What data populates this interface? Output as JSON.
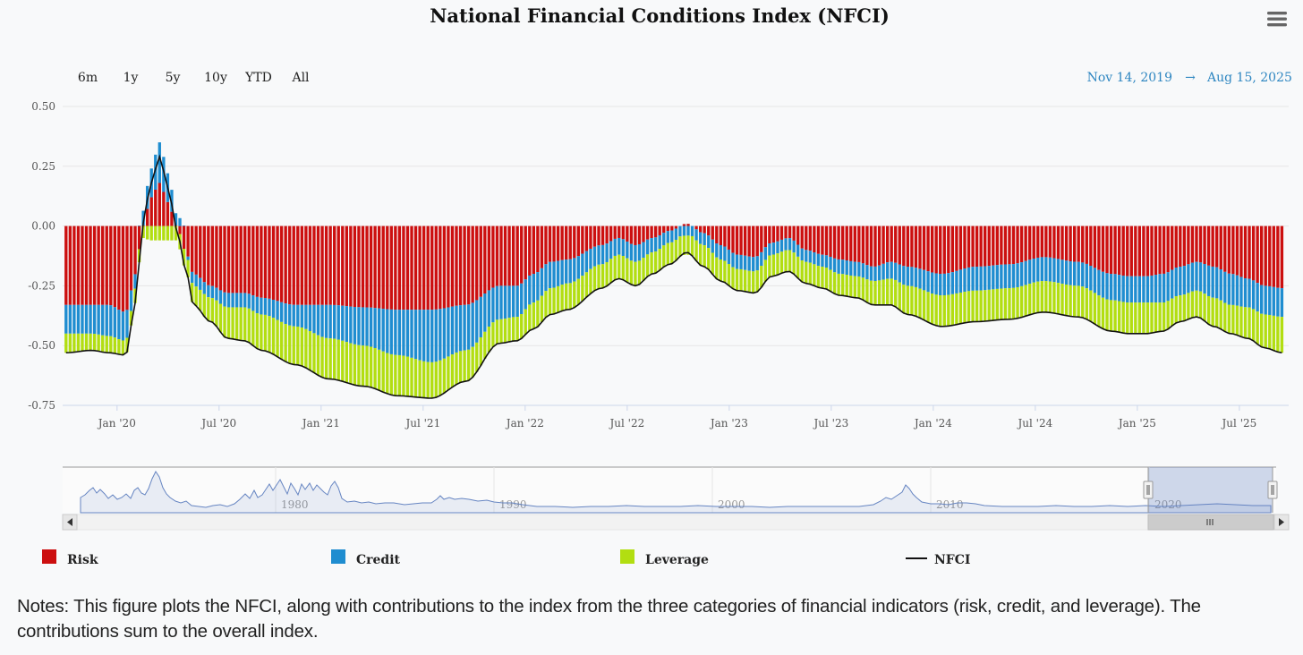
{
  "chart_data": {
    "type": "bar",
    "stacked": true,
    "title": "National Financial Conditions Index (NFCI)",
    "range_buttons": [
      "6m",
      "1y",
      "5y",
      "10y",
      "YTD",
      "All"
    ],
    "date_range": {
      "from": "Nov 14, 2019",
      "arrow": "→",
      "to": "Aug 15, 2025"
    },
    "ylim": [
      -0.75,
      0.5
    ],
    "y_ticks": [
      "0.50",
      "0.25",
      "0.00",
      "-0.25",
      "-0.50",
      "-0.75"
    ],
    "x_tick_labels": [
      "Jan '20",
      "Jul '20",
      "Jan '21",
      "Jul '21",
      "Jan '22",
      "Jul '22",
      "Jan '23",
      "Jul '23",
      "Jan '24",
      "Jul '24",
      "Jan '25",
      "Jul '25"
    ],
    "x_tick_months": [
      1.5,
      7.5,
      13.5,
      19.5,
      25.5,
      31.5,
      37.5,
      43.5,
      49.5,
      55.5,
      61.5,
      67.5
    ],
    "month_domain": [
      -1.7,
      70.4
    ],
    "navigator_labels": [
      "1980",
      "1990",
      "2000",
      "2010",
      "2020"
    ],
    "colors": {
      "risk": "#cc0f0f",
      "credit": "#1f8dd0",
      "leverage": "#b2de11",
      "nfci": "#111111"
    },
    "series_keypoints": {
      "months": [
        -1.5,
        0,
        1,
        2,
        2.6,
        3,
        3.5,
        4,
        4.5,
        5,
        5.5,
        6,
        7,
        8,
        9,
        10,
        12,
        14,
        16,
        18,
        20,
        22,
        24,
        25,
        26,
        27,
        28,
        30,
        31,
        32,
        33,
        34,
        35,
        36,
        37,
        38,
        39,
        40,
        41,
        42,
        43,
        44,
        45,
        46,
        47,
        48,
        50,
        52,
        54,
        56,
        58,
        60,
        61,
        62,
        63,
        64,
        65,
        66,
        67,
        68,
        69,
        70
      ],
      "risk": [
        -0.33,
        -0.33,
        -0.33,
        -0.36,
        -0.2,
        0.0,
        0.12,
        0.18,
        0.1,
        0.0,
        -0.1,
        -0.2,
        -0.25,
        -0.28,
        -0.28,
        -0.3,
        -0.33,
        -0.33,
        -0.34,
        -0.35,
        -0.35,
        -0.33,
        -0.25,
        -0.25,
        -0.2,
        -0.15,
        -0.14,
        -0.08,
        -0.05,
        -0.08,
        -0.05,
        -0.02,
        0.01,
        -0.03,
        -0.08,
        -0.12,
        -0.13,
        -0.07,
        -0.05,
        -0.1,
        -0.12,
        -0.14,
        -0.15,
        -0.17,
        -0.15,
        -0.17,
        -0.2,
        -0.17,
        -0.16,
        -0.13,
        -0.15,
        -0.2,
        -0.21,
        -0.21,
        -0.2,
        -0.17,
        -0.15,
        -0.17,
        -0.2,
        -0.22,
        -0.25,
        -0.26
      ],
      "credit": [
        -0.12,
        -0.12,
        -0.13,
        -0.12,
        -0.06,
        0.06,
        0.12,
        0.17,
        0.12,
        0.05,
        0.0,
        -0.05,
        -0.05,
        -0.06,
        -0.06,
        -0.07,
        -0.09,
        -0.14,
        -0.16,
        -0.19,
        -0.22,
        -0.19,
        -0.14,
        -0.13,
        -0.12,
        -0.11,
        -0.1,
        -0.08,
        -0.07,
        -0.07,
        -0.06,
        -0.05,
        -0.04,
        -0.05,
        -0.06,
        -0.06,
        -0.06,
        -0.05,
        -0.05,
        -0.05,
        -0.05,
        -0.06,
        -0.06,
        -0.06,
        -0.07,
        -0.08,
        -0.09,
        -0.1,
        -0.1,
        -0.1,
        -0.1,
        -0.11,
        -0.11,
        -0.11,
        -0.12,
        -0.12,
        -0.12,
        -0.13,
        -0.13,
        -0.12,
        -0.12,
        -0.12
      ],
      "leverage": [
        -0.08,
        -0.07,
        -0.07,
        -0.06,
        -0.06,
        -0.05,
        -0.06,
        -0.06,
        -0.06,
        -0.06,
        -0.07,
        -0.08,
        -0.1,
        -0.13,
        -0.14,
        -0.15,
        -0.16,
        -0.17,
        -0.17,
        -0.17,
        -0.15,
        -0.13,
        -0.1,
        -0.1,
        -0.11,
        -0.11,
        -0.11,
        -0.1,
        -0.1,
        -0.1,
        -0.09,
        -0.09,
        -0.08,
        -0.09,
        -0.09,
        -0.09,
        -0.09,
        -0.09,
        -0.09,
        -0.09,
        -0.09,
        -0.09,
        -0.09,
        -0.1,
        -0.11,
        -0.12,
        -0.13,
        -0.13,
        -0.13,
        -0.13,
        -0.13,
        -0.13,
        -0.13,
        -0.13,
        -0.12,
        -0.11,
        -0.11,
        -0.12,
        -0.12,
        -0.13,
        -0.14,
        -0.15
      ]
    },
    "legend": [
      {
        "key": "risk",
        "label": "Risk"
      },
      {
        "key": "credit",
        "label": "Credit"
      },
      {
        "key": "leverage",
        "label": "Leverage"
      },
      {
        "key": "nfci",
        "label": "NFCI"
      }
    ]
  },
  "notes": "Notes: This figure plots the NFCI, along with contributions to the index from the three categories of financial indicators (risk, credit, and leverage). The contributions sum to the overall index."
}
